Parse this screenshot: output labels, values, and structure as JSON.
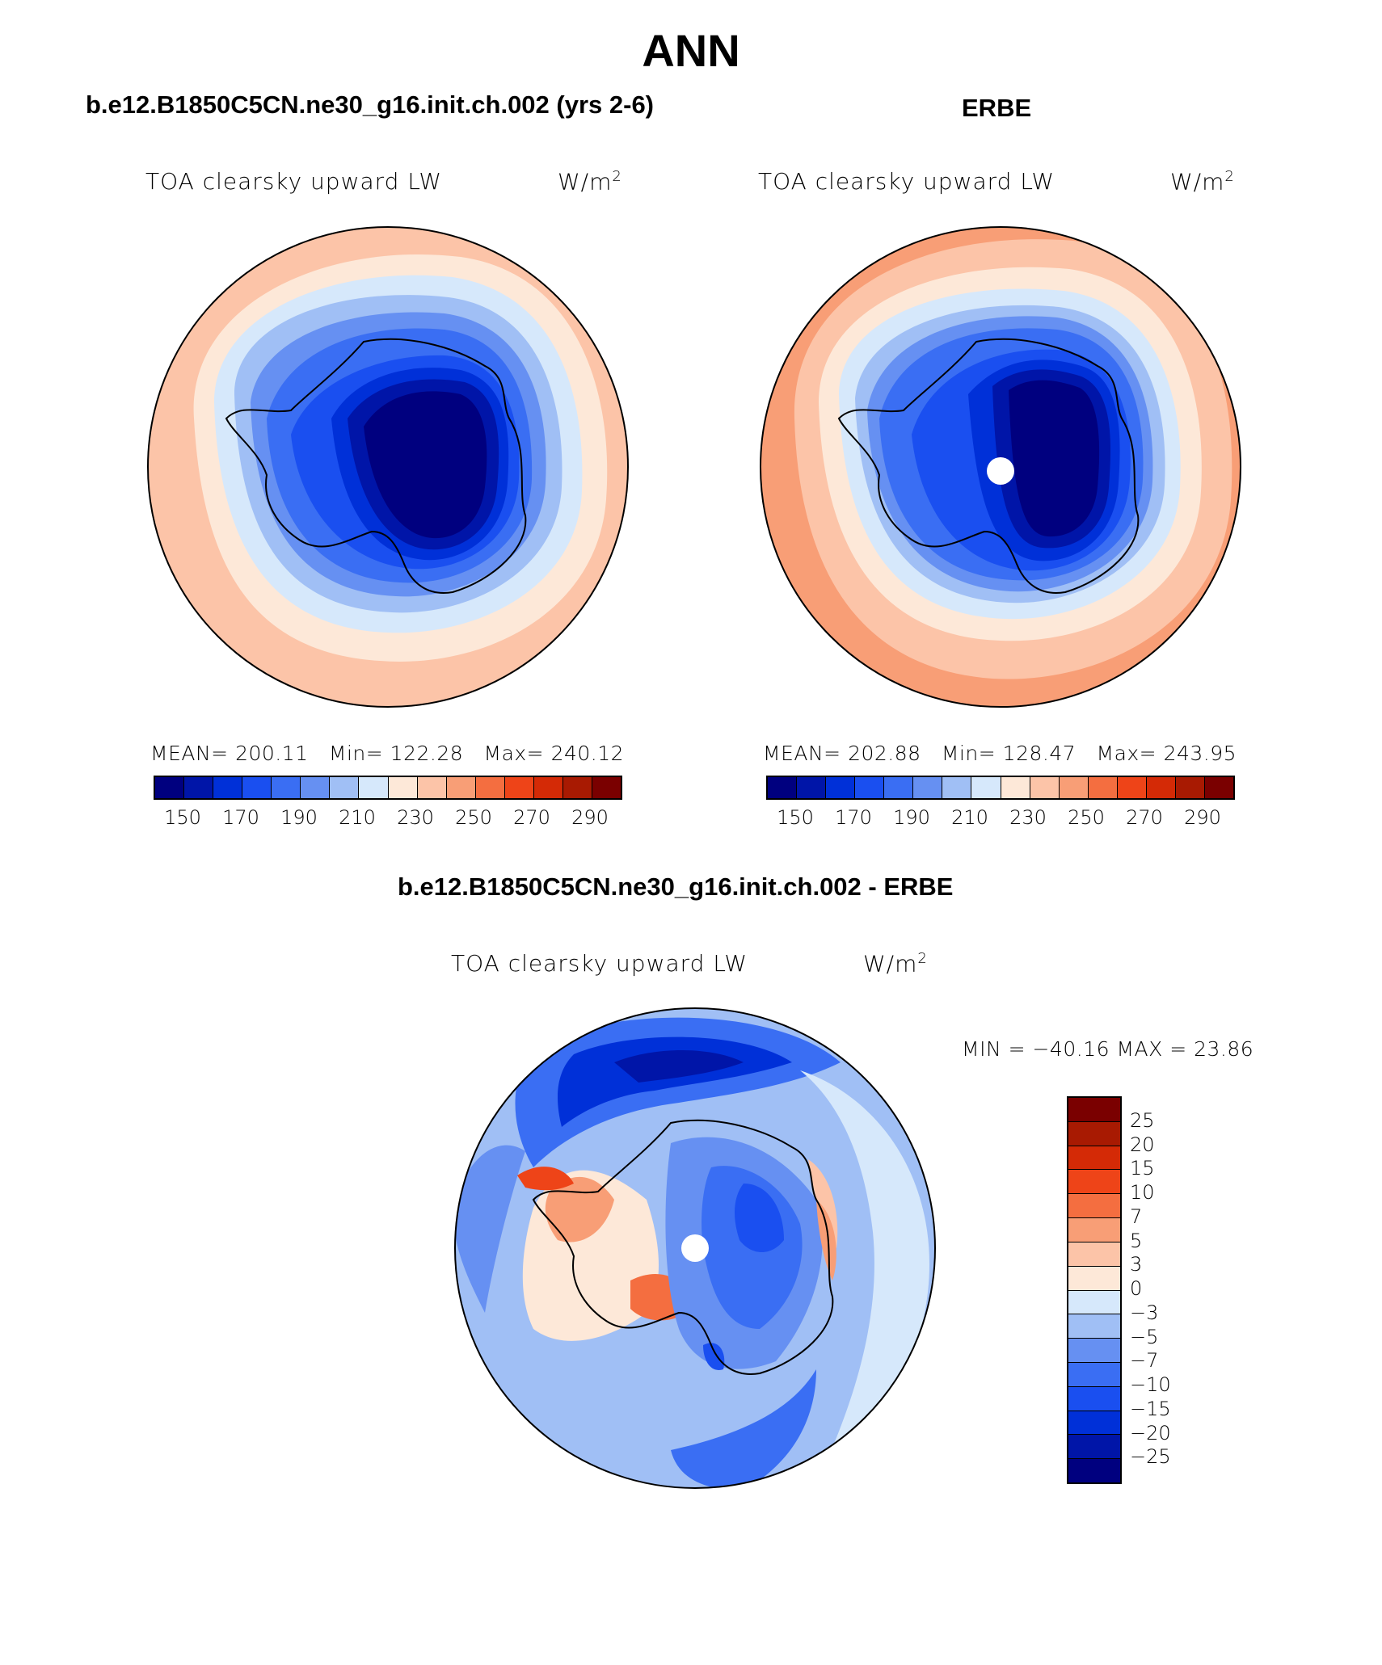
{
  "main_title": "ANN",
  "panels": [
    {
      "title": "b.e12.B1850C5CN.ne30_g16.init.ch.002 (yrs 2-6)",
      "variable": "TOA clearsky upward LW",
      "units": "W/m",
      "units_exp": "2",
      "mean_label": "MEAN=",
      "mean": "200.11",
      "min_label": "Min=",
      "min": "122.28",
      "max_label": "Max=",
      "max": "240.12"
    },
    {
      "title": "ERBE",
      "variable": "TOA clearsky upward LW",
      "units": "W/m",
      "units_exp": "2",
      "mean_label": "MEAN=",
      "mean": "202.88",
      "min_label": "Min=",
      "min": "128.47",
      "max_label": "Max=",
      "max": "243.95"
    }
  ],
  "diff_panel": {
    "title": "b.e12.B1850C5CN.ne30_g16.init.ch.002 - ERBE",
    "variable": "TOA clearsky upward LW",
    "units": "W/m",
    "units_exp": "2",
    "minmax": "MIN = −40.16 MAX =  23.86"
  },
  "colorbar_main": {
    "colors": [
      "#00007f",
      "#0015a8",
      "#0030d8",
      "#1a4ff0",
      "#3a6ef3",
      "#6690f2",
      "#a0bff5",
      "#d6e8fb",
      "#fde8d8",
      "#fcc4a8",
      "#f89e76",
      "#f46e40",
      "#ee4418",
      "#d42a06",
      "#a81a02",
      "#7a0000"
    ],
    "labels": [
      "150",
      "170",
      "190",
      "210",
      "230",
      "250",
      "270",
      "290"
    ]
  },
  "colorbar_diff": {
    "colors": [
      "#7a0000",
      "#a81a02",
      "#d42a06",
      "#ee4418",
      "#f46e40",
      "#f89e76",
      "#fcc4a8",
      "#fde8d8",
      "#d6e8fb",
      "#a0bff5",
      "#6690f2",
      "#3a6ef3",
      "#1a4ff0",
      "#0030d8",
      "#0015a8",
      "#00007f"
    ],
    "labels": [
      "25",
      "20",
      "15",
      "10",
      "7",
      "5",
      "3",
      "0",
      "−3",
      "−5",
      "−7",
      "−10",
      "−15",
      "−20",
      "−25"
    ]
  }
}
